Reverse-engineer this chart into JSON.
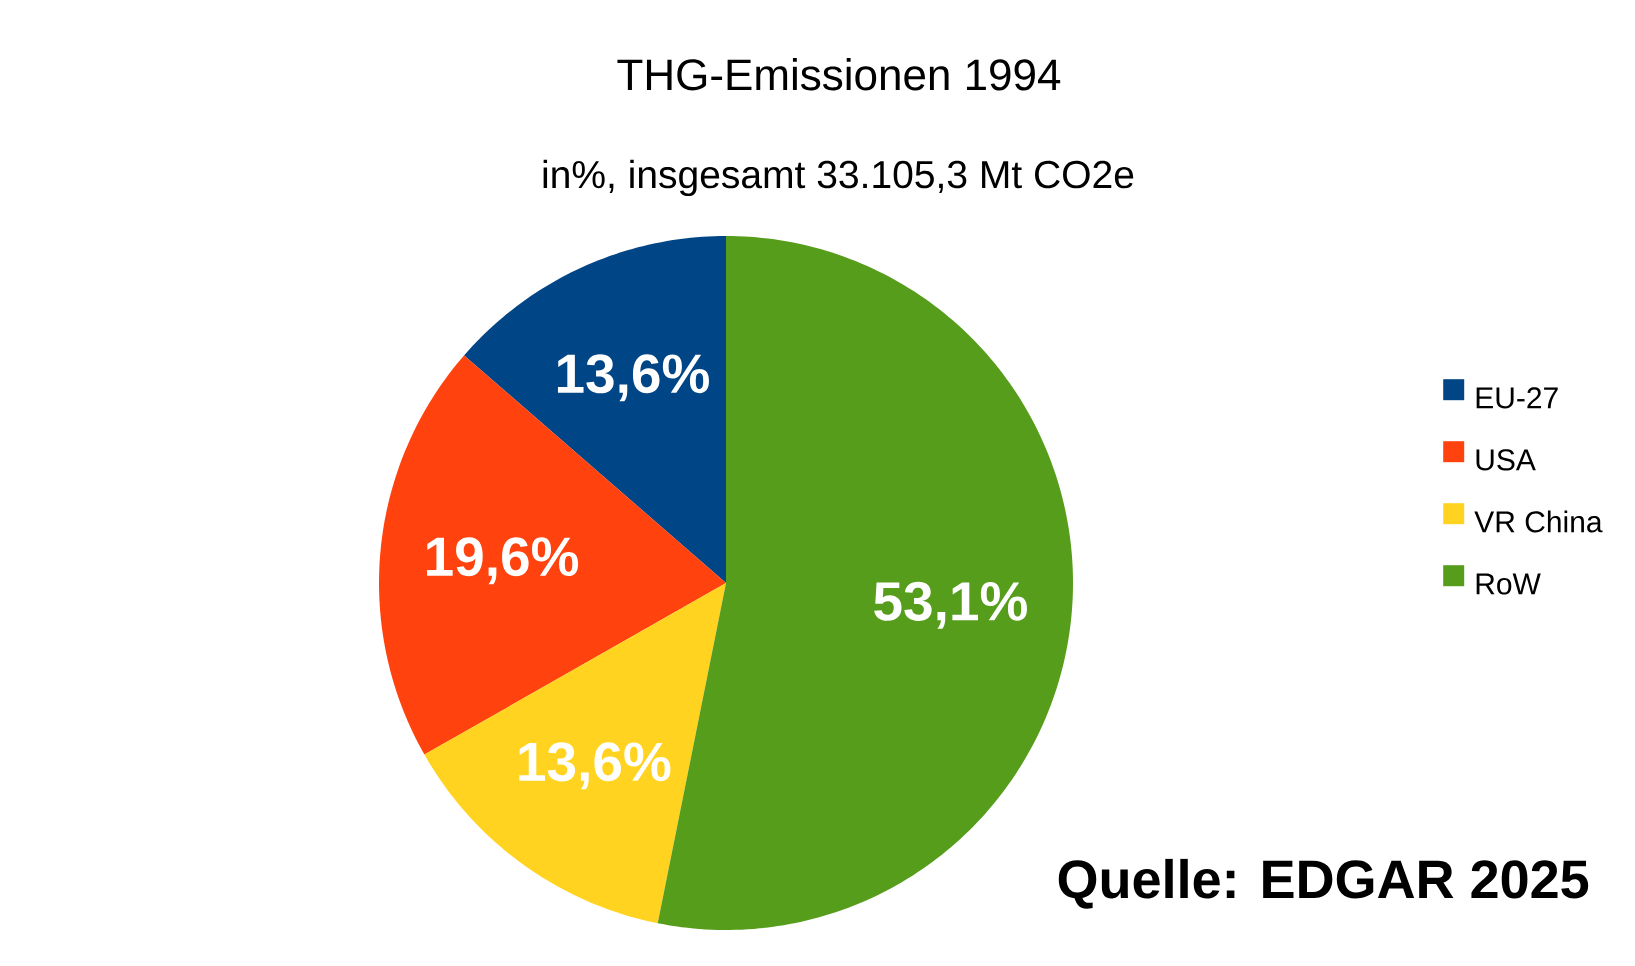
{
  "chart_data": {
    "type": "pie",
    "title": "THG-Emissionen 1994",
    "subtitle": "in%, insgesamt 33.105,3 Mt CO2e",
    "categories": [
      "EU-27",
      "USA",
      "VR China",
      "RoW"
    ],
    "values": [
      13.6,
      19.6,
      13.6,
      53.1
    ],
    "colors": [
      "#004586",
      "#ff420e",
      "#ffd320",
      "#579d1c"
    ],
    "value_labels": [
      "13,6%",
      "19,6%",
      "13,6%",
      "53,1%"
    ],
    "legend": "right",
    "annotations": [
      "Quelle: EDGAR 2025"
    ]
  }
}
